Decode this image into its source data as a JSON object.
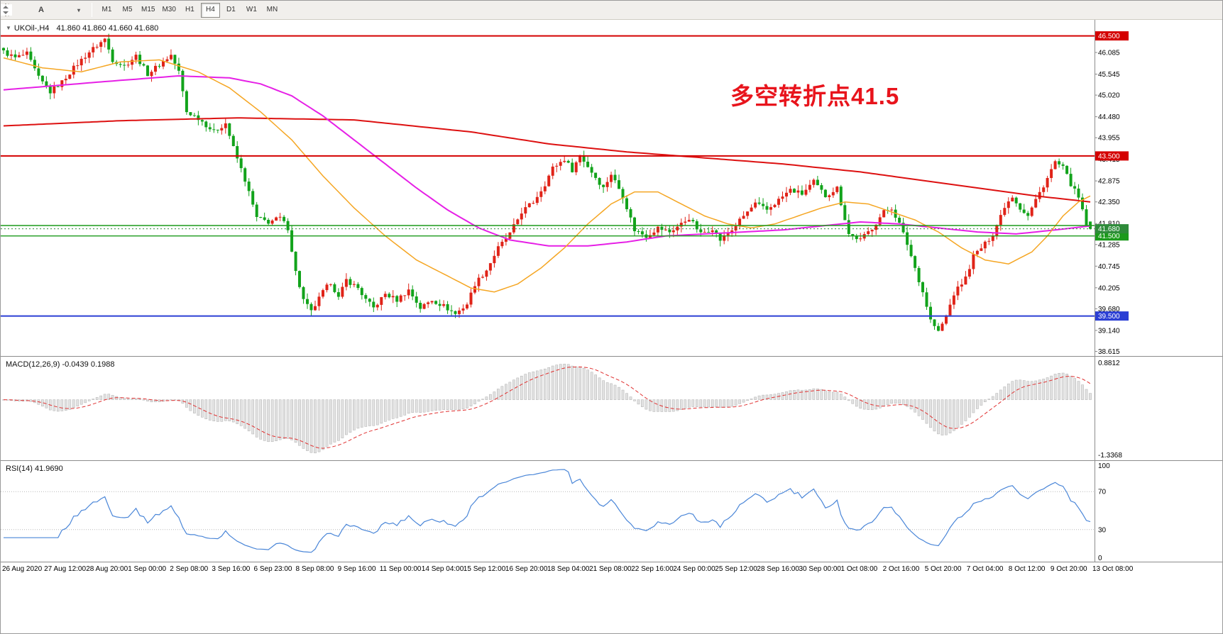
{
  "toolbar": {
    "icons": [
      {
        "name": "chart-shift-icon"
      },
      {
        "name": "cursor-a-icon",
        "glyph": "A"
      },
      {
        "name": "object-frame-icon"
      },
      {
        "name": "scale-arrows-icon"
      }
    ],
    "timeframes": [
      "M1",
      "M5",
      "M15",
      "M30",
      "H1",
      "H4",
      "D1",
      "W1",
      "MN"
    ],
    "active_timeframe": "H4"
  },
  "chart": {
    "title": {
      "dropdown_glyph": "▼",
      "symbol": "UKOil-,H4",
      "ohlc": "41.860 41.860 41.660 41.680"
    },
    "annotation": {
      "text": "多空转折点41.5",
      "color": "#e8141c"
    },
    "price_axis": {
      "min": 38.5,
      "max": 46.9,
      "ticks": [
        "46.085",
        "45.545",
        "45.020",
        "44.480",
        "43.955",
        "43.415",
        "42.875",
        "42.350",
        "41.810",
        "41.285",
        "40.745",
        "40.205",
        "39.680",
        "39.140",
        "38.615"
      ]
    },
    "hlines": [
      {
        "price": 46.5,
        "color": "#d40000",
        "width": 2,
        "label": "46.500"
      },
      {
        "price": 43.5,
        "color": "#d40000",
        "width": 2,
        "label": "43.500"
      },
      {
        "price": 41.76,
        "color": "#1c9a1c",
        "width": 1.4
      },
      {
        "price": 41.5,
        "color": "#1c9a1c",
        "width": 1.4,
        "label": "41.500"
      },
      {
        "price": 39.5,
        "color": "#2b3fd4",
        "width": 2,
        "label": "39.500"
      }
    ],
    "current_price": {
      "value": "41.680",
      "box_color": "#2e8b3a",
      "line_color": "#2e8b3a"
    }
  },
  "macd_panel": {
    "label": "MACD(12,26,9) -0.0439 0.1988",
    "fast": 12,
    "slow": 26,
    "signal": 9,
    "axis_max": "0.8812",
    "axis_min": "-1.3368",
    "histogram_color": "#e2e2e2",
    "signal_color": "#e03030"
  },
  "rsi_panel": {
    "label": "RSI(14) 41.9690",
    "period": 14,
    "levels": [
      70,
      30
    ],
    "axis_labels": [
      "100",
      "70",
      "30",
      "0"
    ],
    "line_color": "#4a86d8"
  },
  "time_axis": [
    "26 Aug 2020",
    "27 Aug 12:00",
    "28 Aug 20:00",
    "1 Sep 00:00",
    "2 Sep 08:00",
    "3 Sep 16:00",
    "6 Sep 23:00",
    "8 Sep 08:00",
    "9 Sep 16:00",
    "11 Sep 00:00",
    "14 Sep 04:00",
    "15 Sep 12:00",
    "16 Sep 20:00",
    "18 Sep 04:00",
    "21 Sep 08:00",
    "22 Sep 16:00",
    "24 Sep 00:00",
    "25 Sep 12:00",
    "28 Sep 16:00",
    "30 Sep 00:00",
    "1 Oct 08:00",
    "2 Oct 16:00",
    "5 Oct 20:00",
    "7 Oct 04:00",
    "8 Oct 12:00",
    "9 Oct 20:00",
    "13 Oct 08:00"
  ],
  "chart_data": {
    "type": "candlestick",
    "symbol": "UKOil-",
    "timeframe": "H4",
    "candle_count": 280,
    "up_color": "#e02318",
    "down_color": "#12a31b",
    "wick_noise": 0.15,
    "close_noise": 0.12,
    "last_candle": {
      "open": 41.86,
      "high": 41.86,
      "low": 41.66,
      "close": 41.68
    },
    "close_waypoints": [
      [
        0,
        46.1
      ],
      [
        3,
        45.95
      ],
      [
        6,
        46.05
      ],
      [
        9,
        45.45
      ],
      [
        12,
        45.1
      ],
      [
        15,
        45.35
      ],
      [
        18,
        45.7
      ],
      [
        22,
        46.1
      ],
      [
        26,
        46.42
      ],
      [
        28,
        45.9
      ],
      [
        31,
        45.75
      ],
      [
        34,
        46.0
      ],
      [
        37,
        45.55
      ],
      [
        40,
        45.78
      ],
      [
        43,
        46.02
      ],
      [
        45,
        45.6
      ],
      [
        47,
        44.6
      ],
      [
        50,
        44.45
      ],
      [
        54,
        44.1
      ],
      [
        57,
        44.32
      ],
      [
        59,
        43.7
      ],
      [
        62,
        42.9
      ],
      [
        65,
        41.95
      ],
      [
        68,
        41.85
      ],
      [
        71,
        41.95
      ],
      [
        73,
        41.7
      ],
      [
        75,
        40.6
      ],
      [
        77,
        39.9
      ],
      [
        79,
        39.6
      ],
      [
        82,
        40.1
      ],
      [
        84,
        40.35
      ],
      [
        86,
        39.95
      ],
      [
        88,
        40.4
      ],
      [
        91,
        40.2
      ],
      [
        93,
        39.9
      ],
      [
        95,
        39.7
      ],
      [
        98,
        40.05
      ],
      [
        101,
        39.9
      ],
      [
        104,
        40.15
      ],
      [
        107,
        39.7
      ],
      [
        110,
        39.9
      ],
      [
        113,
        39.75
      ],
      [
        116,
        39.55
      ],
      [
        119,
        39.8
      ],
      [
        121,
        40.3
      ],
      [
        124,
        40.65
      ],
      [
        127,
        41.2
      ],
      [
        130,
        41.55
      ],
      [
        133,
        42.1
      ],
      [
        136,
        42.35
      ],
      [
        139,
        42.8
      ],
      [
        141,
        43.2
      ],
      [
        144,
        43.42
      ],
      [
        146,
        43.15
      ],
      [
        148,
        43.52
      ],
      [
        151,
        43.1
      ],
      [
        154,
        42.7
      ],
      [
        156,
        43.05
      ],
      [
        159,
        42.5
      ],
      [
        162,
        41.65
      ],
      [
        165,
        41.5
      ],
      [
        168,
        41.7
      ],
      [
        171,
        41.6
      ],
      [
        174,
        41.8
      ],
      [
        176,
        41.95
      ],
      [
        179,
        41.55
      ],
      [
        182,
        41.7
      ],
      [
        184,
        41.4
      ],
      [
        187,
        41.65
      ],
      [
        190,
        42.0
      ],
      [
        193,
        42.3
      ],
      [
        196,
        42.15
      ],
      [
        199,
        42.4
      ],
      [
        202,
        42.65
      ],
      [
        205,
        42.55
      ],
      [
        208,
        42.85
      ],
      [
        211,
        42.5
      ],
      [
        214,
        42.7
      ],
      [
        217,
        41.55
      ],
      [
        220,
        41.4
      ],
      [
        223,
        41.7
      ],
      [
        226,
        42.1
      ],
      [
        228,
        42.2
      ],
      [
        230,
        41.8
      ],
      [
        232,
        41.3
      ],
      [
        234,
        40.7
      ],
      [
        236,
        40.1
      ],
      [
        238,
        39.4
      ],
      [
        240,
        39.1
      ],
      [
        242,
        39.5
      ],
      [
        244,
        40.05
      ],
      [
        247,
        40.45
      ],
      [
        249,
        41.0
      ],
      [
        252,
        41.3
      ],
      [
        254,
        41.55
      ],
      [
        257,
        42.25
      ],
      [
        259,
        42.5
      ],
      [
        261,
        42.2
      ],
      [
        263,
        42.0
      ],
      [
        265,
        42.4
      ],
      [
        268,
        42.95
      ],
      [
        270,
        43.35
      ],
      [
        272,
        43.2
      ],
      [
        274,
        42.8
      ],
      [
        276,
        42.45
      ],
      [
        278,
        41.78
      ],
      [
        279,
        41.68
      ]
    ],
    "moving_averages": [
      {
        "name": "ma-slow",
        "color": "#dd1111",
        "width": 2,
        "points": [
          [
            0,
            44.25
          ],
          [
            30,
            44.38
          ],
          [
            60,
            44.45
          ],
          [
            90,
            44.4
          ],
          [
            120,
            44.1
          ],
          [
            140,
            43.8
          ],
          [
            160,
            43.6
          ],
          [
            180,
            43.45
          ],
          [
            200,
            43.3
          ],
          [
            220,
            43.1
          ],
          [
            235,
            42.9
          ],
          [
            250,
            42.7
          ],
          [
            265,
            42.5
          ],
          [
            279,
            42.35
          ]
        ]
      },
      {
        "name": "ma-mid",
        "color": "#e620e6",
        "width": 2,
        "points": [
          [
            0,
            45.15
          ],
          [
            25,
            45.35
          ],
          [
            45,
            45.5
          ],
          [
            58,
            45.45
          ],
          [
            66,
            45.3
          ],
          [
            74,
            45.0
          ],
          [
            82,
            44.5
          ],
          [
            90,
            43.9
          ],
          [
            98,
            43.3
          ],
          [
            106,
            42.7
          ],
          [
            114,
            42.15
          ],
          [
            122,
            41.7
          ],
          [
            130,
            41.4
          ],
          [
            140,
            41.25
          ],
          [
            150,
            41.25
          ],
          [
            160,
            41.35
          ],
          [
            170,
            41.5
          ],
          [
            180,
            41.55
          ],
          [
            190,
            41.6
          ],
          [
            200,
            41.65
          ],
          [
            210,
            41.75
          ],
          [
            220,
            41.85
          ],
          [
            230,
            41.8
          ],
          [
            240,
            41.7
          ],
          [
            250,
            41.6
          ],
          [
            260,
            41.55
          ],
          [
            270,
            41.65
          ],
          [
            279,
            41.75
          ]
        ]
      },
      {
        "name": "ma-fast",
        "color": "#f5a623",
        "width": 1.5,
        "points": [
          [
            0,
            45.95
          ],
          [
            10,
            45.7
          ],
          [
            20,
            45.6
          ],
          [
            30,
            45.85
          ],
          [
            40,
            45.9
          ],
          [
            50,
            45.6
          ],
          [
            58,
            45.2
          ],
          [
            66,
            44.6
          ],
          [
            74,
            43.9
          ],
          [
            82,
            43.0
          ],
          [
            90,
            42.2
          ],
          [
            98,
            41.5
          ],
          [
            106,
            40.9
          ],
          [
            114,
            40.5
          ],
          [
            120,
            40.2
          ],
          [
            126,
            40.1
          ],
          [
            132,
            40.3
          ],
          [
            138,
            40.7
          ],
          [
            144,
            41.2
          ],
          [
            150,
            41.8
          ],
          [
            156,
            42.3
          ],
          [
            162,
            42.6
          ],
          [
            168,
            42.6
          ],
          [
            174,
            42.3
          ],
          [
            180,
            42.0
          ],
          [
            186,
            41.8
          ],
          [
            192,
            41.7
          ],
          [
            198,
            41.8
          ],
          [
            204,
            42.0
          ],
          [
            210,
            42.2
          ],
          [
            216,
            42.35
          ],
          [
            222,
            42.3
          ],
          [
            228,
            42.1
          ],
          [
            234,
            41.9
          ],
          [
            240,
            41.6
          ],
          [
            246,
            41.2
          ],
          [
            252,
            40.9
          ],
          [
            258,
            40.8
          ],
          [
            264,
            41.1
          ],
          [
            268,
            41.5
          ],
          [
            272,
            42.0
          ],
          [
            276,
            42.35
          ],
          [
            279,
            42.5
          ]
        ]
      }
    ]
  }
}
